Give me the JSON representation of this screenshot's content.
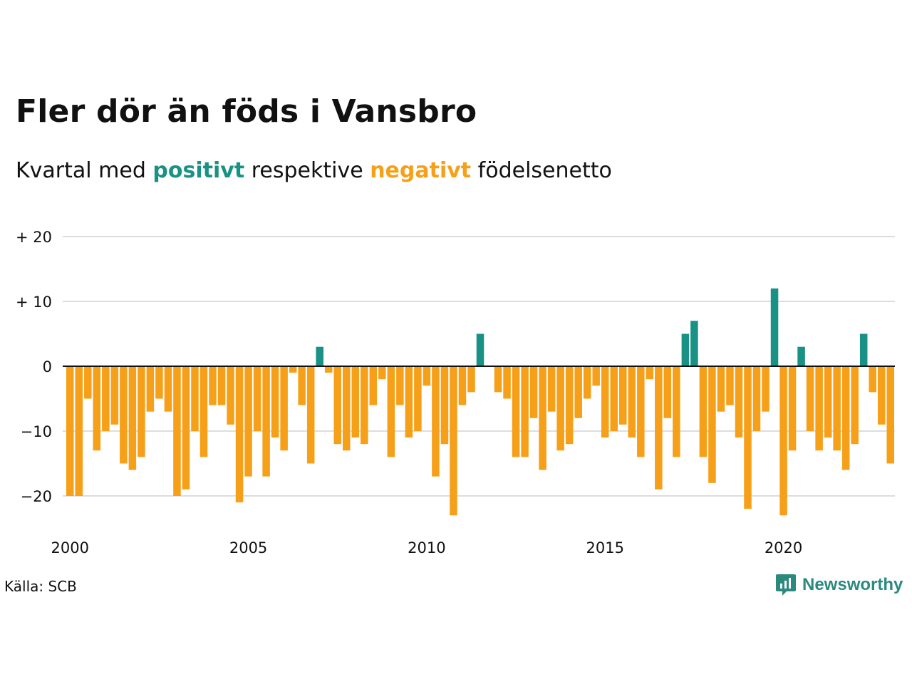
{
  "title": "Fler dör än föds i Vansbro",
  "subtitle": {
    "prefix": "Kvartal med ",
    "positive_word": "positivt",
    "middle": " respektive ",
    "negative_word": "negativt",
    "suffix": " födelsenetto"
  },
  "source": "Källa: SCB",
  "logo_text": "Newsworthy",
  "colors": {
    "positive": "#1a9185",
    "negative": "#f6a01a",
    "grid": "#dddddd",
    "axis": "#111111",
    "logo": "#2a8a7e"
  },
  "chart_data": {
    "type": "bar",
    "title": "Fler dör än föds i Vansbro",
    "subtitle": "Kvartal med positivt respektive negativt födelsenetto",
    "x_start_year": 2000,
    "quarters_per_year": 4,
    "x_ticks": [
      "2000",
      "2005",
      "2010",
      "2015",
      "2020"
    ],
    "y_ticks": [
      {
        "value": 20,
        "label": "+ 20"
      },
      {
        "value": 10,
        "label": "+ 10"
      },
      {
        "value": 0,
        "label": "0"
      },
      {
        "value": -10,
        "label": "−10"
      },
      {
        "value": -20,
        "label": "−20"
      }
    ],
    "ylim": [
      -25,
      20
    ],
    "grid": true,
    "values": [
      -20,
      -20,
      -5,
      -13,
      -10,
      -9,
      -15,
      -16,
      -14,
      -7,
      -5,
      -7,
      -20,
      -19,
      -10,
      -14,
      -6,
      -6,
      -9,
      -21,
      -17,
      -10,
      -17,
      -11,
      -13,
      -1,
      -6,
      -15,
      3,
      -1,
      -12,
      -13,
      -11,
      -12,
      -6,
      -2,
      -14,
      -6,
      -11,
      -10,
      -3,
      -17,
      -12,
      -23,
      -6,
      -4,
      5,
      0,
      -4,
      -5,
      -14,
      -14,
      -8,
      -16,
      -7,
      -13,
      -12,
      -8,
      -5,
      -3,
      -11,
      -10,
      -9,
      -11,
      -14,
      -2,
      -19,
      -8,
      -14,
      5,
      7,
      -14,
      -18,
      -7,
      -6,
      -11,
      -22,
      -10,
      -7,
      12,
      -23,
      -13,
      3,
      -10,
      -13,
      -11,
      -13,
      -16,
      -12,
      5,
      -4,
      -9,
      -15
    ]
  }
}
